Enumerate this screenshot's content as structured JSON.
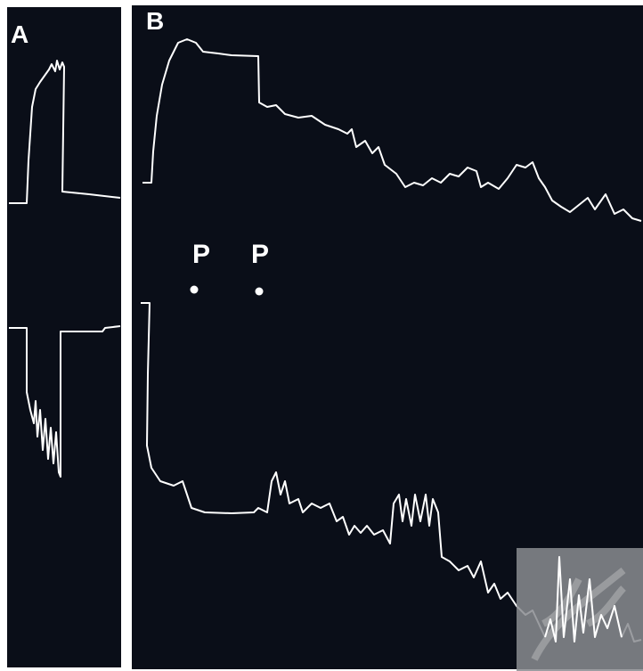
{
  "panels": [
    {
      "label": "A"
    },
    {
      "label": "B",
      "markers": [
        "P",
        "P"
      ]
    }
  ]
}
